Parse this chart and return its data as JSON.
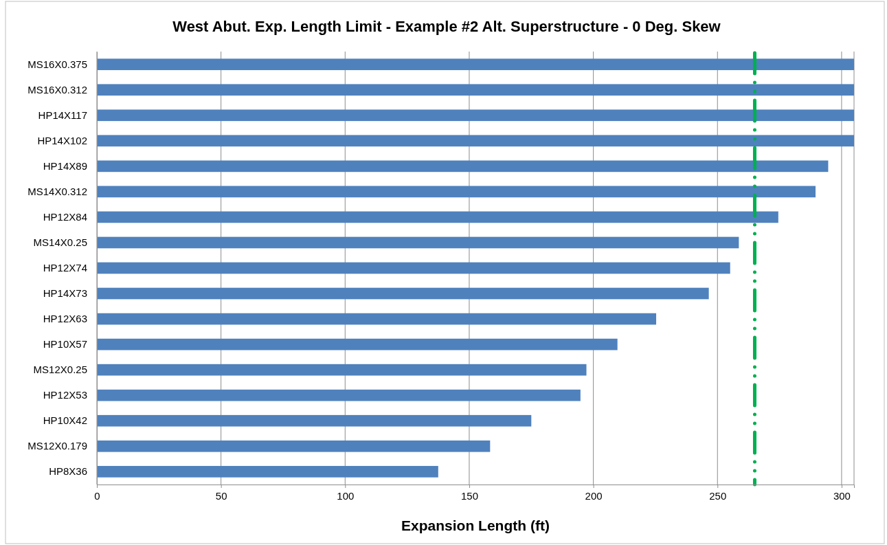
{
  "chart_data": {
    "type": "bar",
    "orientation": "horizontal",
    "title": "West Abut. Exp. Length Limit -  Example #2 Alt. Superstructure - 0 Deg. Skew",
    "xlabel": "Expansion Length (ft)",
    "categories": [
      "MS16X0.375",
      "MS16X0.312",
      "HP14X117",
      "HP14X102",
      "HP14X89",
      "MS14X0.312",
      "HP12X84",
      "MS14X0.25",
      "HP12X74",
      "HP14X73",
      "HP12X63",
      "HP10X57",
      "MS12X0.25",
      "HP12X53",
      "HP10X42",
      "MS12X0.179",
      "HP8X36"
    ],
    "values": [
      305,
      305,
      305,
      305,
      294.6,
      289.5,
      274.5,
      258.6,
      255.1,
      246.5,
      225.3,
      209.7,
      197.2,
      194.8,
      175,
      158.4,
      137.5
    ],
    "color": "#4f81bd",
    "xlim": [
      0,
      305
    ],
    "xticks": [
      0,
      50,
      100,
      150,
      200,
      250,
      300
    ],
    "grid": "x",
    "ref_lines": [
      {
        "axis": "x",
        "value": 265,
        "color": "#00b050",
        "line_style": "dashdotdot"
      }
    ]
  }
}
